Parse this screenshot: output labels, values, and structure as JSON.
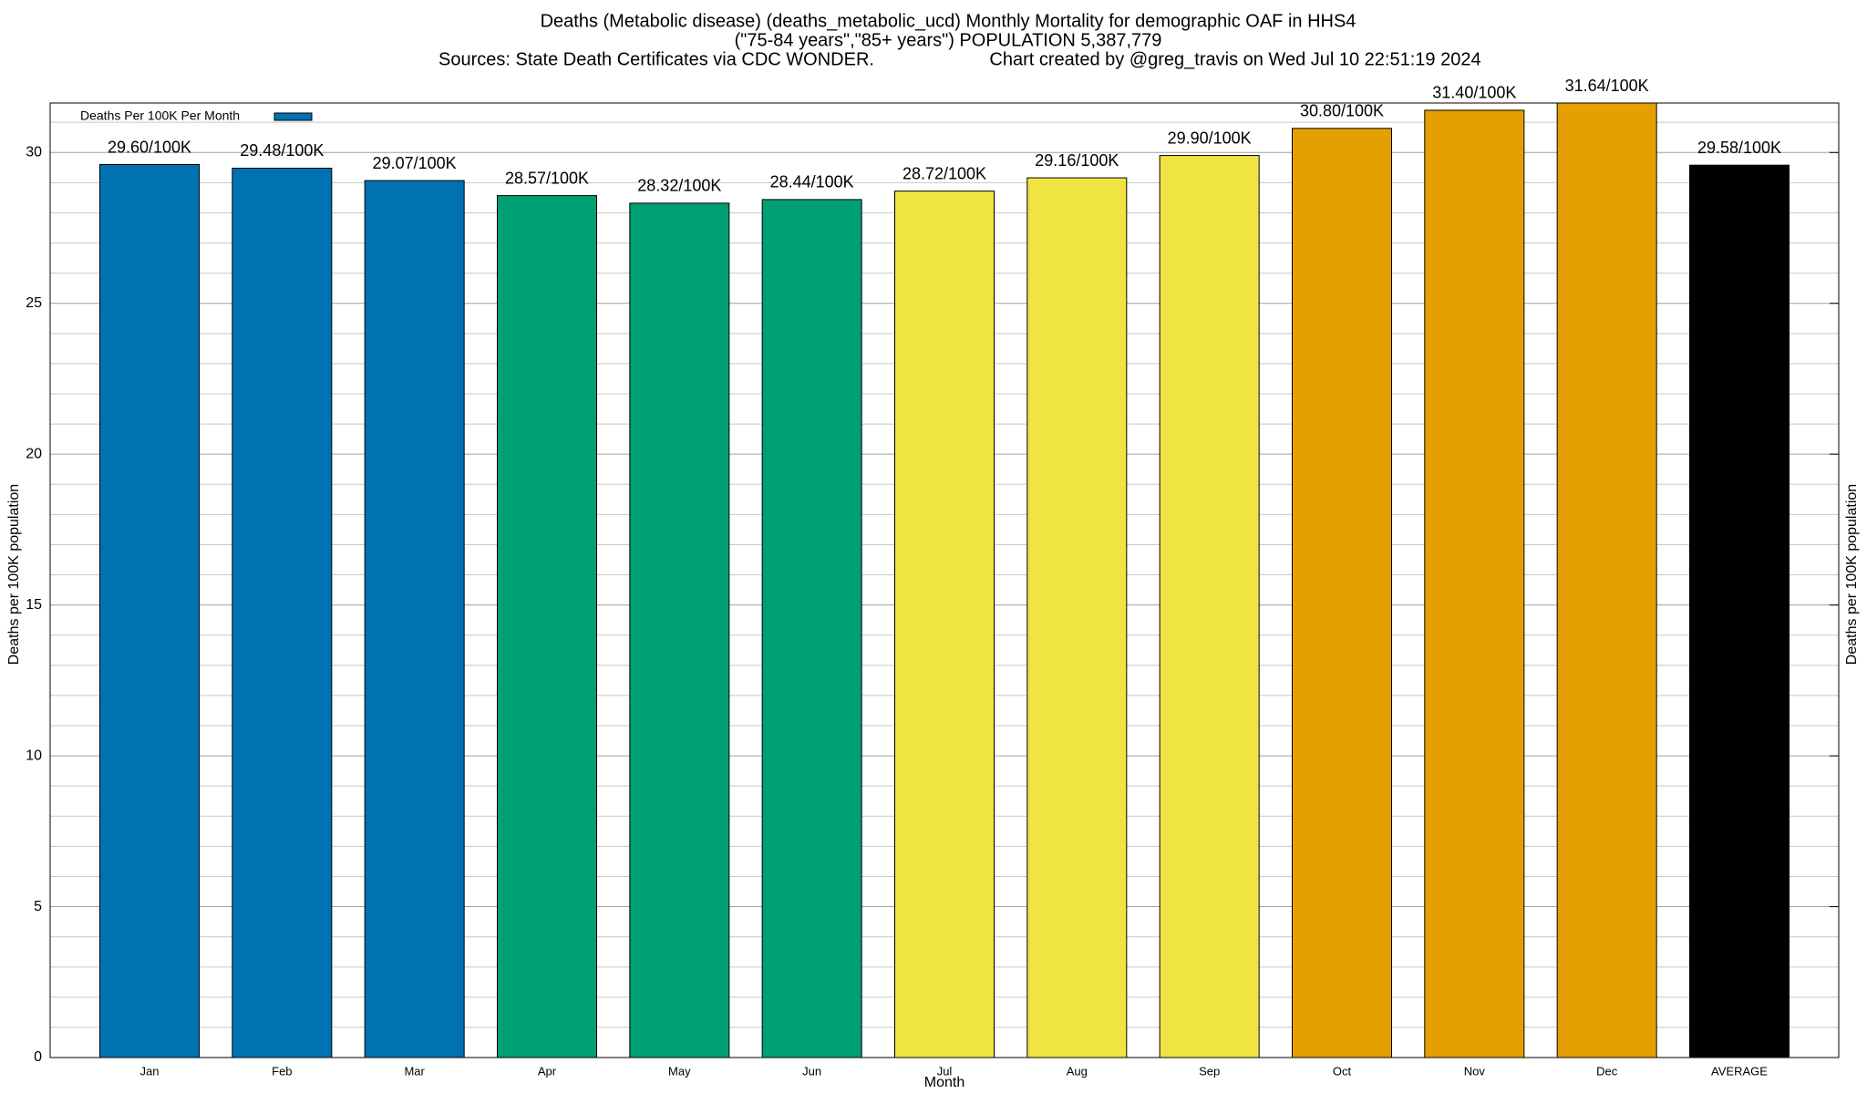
{
  "chart_data": {
    "type": "bar",
    "title": [
      "Deaths (Metabolic disease) (deaths_metabolic_ucd) Monthly Mortality for demographic OAF in HHS4",
      "(\"75-84 years\",\"85+ years\") POPULATION 5,387,779"
    ],
    "source": "Sources: State Death Certificates via CDC WONDER.",
    "credit": "Chart created by @greg_travis on Wed Jul 10 22:51:19 2024",
    "xlabel": "Month",
    "ylabel": "Deaths per 100K population",
    "legend": "upper left",
    "series": [
      {
        "name": "Deaths Per 100K Per Month",
        "color": "#0072b2",
        "values": [
          29.6,
          29.48,
          29.07,
          28.57,
          28.32,
          28.44,
          28.72,
          29.16,
          29.9,
          30.8,
          31.4,
          31.64,
          29.58
        ],
        "value_labels": [
          "29.60/100K",
          "29.48/100K",
          "29.07/100K",
          "28.57/100K",
          "28.32/100K",
          "28.44/100K",
          "28.72/100K",
          "29.16/100K",
          "29.90/100K",
          "30.80/100K",
          "31.40/100K",
          "31.64/100K",
          "29.58/100K"
        ],
        "colors": [
          "#0072b2",
          "#0072b2",
          "#0072b2",
          "#009e73",
          "#009e73",
          "#009e73",
          "#f0e442",
          "#f0e442",
          "#f0e442",
          "#e69f00",
          "#e69f00",
          "#e69f00",
          "#000000"
        ]
      }
    ],
    "categories": [
      "Jan",
      "Feb",
      "Mar",
      "Apr",
      "May",
      "Jun",
      "Jul",
      "Aug",
      "Sep",
      "Oct",
      "Nov",
      "Dec",
      "AVERAGE"
    ],
    "ylim": [
      0,
      31.64
    ],
    "yticks": [
      0,
      5,
      10,
      15,
      20,
      25,
      30
    ],
    "minor_yticks": [
      1,
      2,
      3,
      4,
      6,
      7,
      8,
      9,
      11,
      12,
      13,
      14,
      16,
      17,
      18,
      19,
      21,
      22,
      23,
      24,
      26,
      27,
      28,
      29,
      31
    ],
    "grid": true
  }
}
